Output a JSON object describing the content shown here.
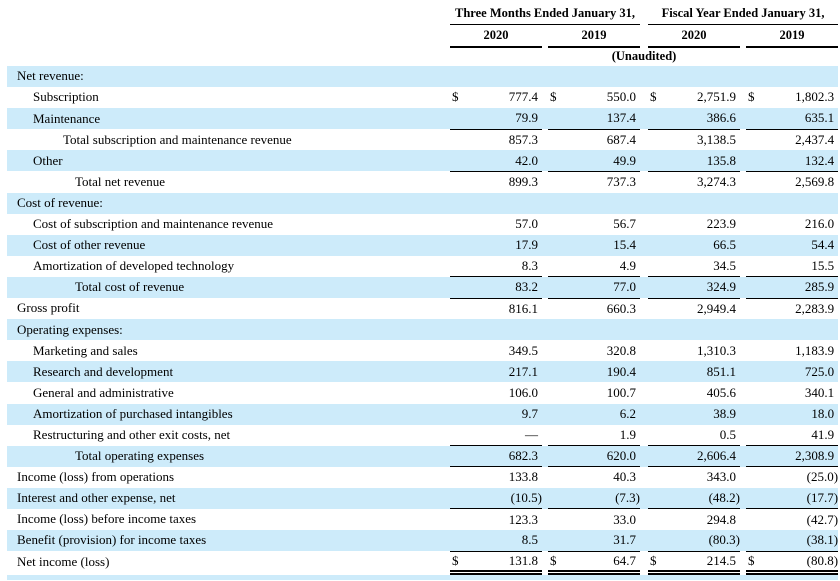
{
  "document": {
    "unaudited_note": "(Unaudited)",
    "column_groups": [
      {
        "label": "Three Months Ended January 31,",
        "years": [
          "2020",
          "2019"
        ]
      },
      {
        "label": "Fiscal Year Ended January 31,",
        "years": [
          "2020",
          "2019"
        ]
      }
    ]
  },
  "colors": {
    "row_highlight": "#cdebfa",
    "rule": "#000000",
    "text": "#000000"
  },
  "table": {
    "rows": [
      {
        "label": "Net revenue:",
        "indent": 0,
        "shaded": true,
        "dollar": false,
        "underline": "none",
        "values": [
          "",
          "",
          "",
          ""
        ]
      },
      {
        "label": "Subscription",
        "indent": 1,
        "shaded": false,
        "dollar": true,
        "underline": "none",
        "values": [
          "777.4",
          "550.0",
          "2,751.9",
          "1,802.3"
        ]
      },
      {
        "label": "Maintenance",
        "indent": 1,
        "shaded": true,
        "dollar": false,
        "underline": "single",
        "values": [
          "79.9",
          "137.4",
          "386.6",
          "635.1"
        ]
      },
      {
        "label": "Total subscription and maintenance revenue",
        "indent": 2,
        "shaded": false,
        "dollar": false,
        "underline": "none",
        "values": [
          "857.3",
          "687.4",
          "3,138.5",
          "2,437.4"
        ]
      },
      {
        "label": "Other",
        "indent": 1,
        "shaded": true,
        "dollar": false,
        "underline": "single",
        "values": [
          "42.0",
          "49.9",
          "135.8",
          "132.4"
        ]
      },
      {
        "label": "Total net revenue",
        "indent": 3,
        "shaded": false,
        "dollar": false,
        "underline": "none",
        "values": [
          "899.3",
          "737.3",
          "3,274.3",
          "2,569.8"
        ]
      },
      {
        "label": "Cost of revenue:",
        "indent": 0,
        "shaded": true,
        "dollar": false,
        "underline": "none",
        "values": [
          "",
          "",
          "",
          ""
        ]
      },
      {
        "label": "Cost of subscription and maintenance revenue",
        "indent": 1,
        "shaded": false,
        "dollar": false,
        "underline": "none",
        "values": [
          "57.0",
          "56.7",
          "223.9",
          "216.0"
        ]
      },
      {
        "label": "Cost of other revenue",
        "indent": 1,
        "shaded": true,
        "dollar": false,
        "underline": "none",
        "values": [
          "17.9",
          "15.4",
          "66.5",
          "54.4"
        ]
      },
      {
        "label": "Amortization of developed technology",
        "indent": 1,
        "shaded": false,
        "dollar": false,
        "underline": "single",
        "values": [
          "8.3",
          "4.9",
          "34.5",
          "15.5"
        ]
      },
      {
        "label": "Total cost of revenue",
        "indent": 3,
        "shaded": true,
        "dollar": false,
        "underline": "single",
        "values": [
          "83.2",
          "77.0",
          "324.9",
          "285.9"
        ]
      },
      {
        "label": "Gross profit",
        "indent": 0,
        "shaded": false,
        "dollar": false,
        "underline": "none",
        "values": [
          "816.1",
          "660.3",
          "2,949.4",
          "2,283.9"
        ]
      },
      {
        "label": "Operating expenses:",
        "indent": 0,
        "shaded": true,
        "dollar": false,
        "underline": "none",
        "values": [
          "",
          "",
          "",
          ""
        ]
      },
      {
        "label": "Marketing and sales",
        "indent": 1,
        "shaded": false,
        "dollar": false,
        "underline": "none",
        "values": [
          "349.5",
          "320.8",
          "1,310.3",
          "1,183.9"
        ]
      },
      {
        "label": "Research and development",
        "indent": 1,
        "shaded": true,
        "dollar": false,
        "underline": "none",
        "values": [
          "217.1",
          "190.4",
          "851.1",
          "725.0"
        ]
      },
      {
        "label": "General and administrative",
        "indent": 1,
        "shaded": false,
        "dollar": false,
        "underline": "none",
        "values": [
          "106.0",
          "100.7",
          "405.6",
          "340.1"
        ]
      },
      {
        "label": "Amortization of purchased intangibles",
        "indent": 1,
        "shaded": true,
        "dollar": false,
        "underline": "none",
        "values": [
          "9.7",
          "6.2",
          "38.9",
          "18.0"
        ]
      },
      {
        "label": "Restructuring and other exit costs, net",
        "indent": 1,
        "shaded": false,
        "dollar": false,
        "underline": "single",
        "values": [
          "—",
          "1.9",
          "0.5",
          "41.9"
        ]
      },
      {
        "label": "Total operating expenses",
        "indent": 3,
        "shaded": true,
        "dollar": false,
        "underline": "single",
        "values": [
          "682.3",
          "620.0",
          "2,606.4",
          "2,308.9"
        ]
      },
      {
        "label": "Income (loss) from operations",
        "indent": 0,
        "shaded": false,
        "dollar": false,
        "underline": "none",
        "values": [
          "133.8",
          "40.3",
          "343.0",
          "(25.0)"
        ]
      },
      {
        "label": "Interest and other expense, net",
        "indent": 0,
        "shaded": true,
        "dollar": false,
        "underline": "single",
        "values": [
          "(10.5)",
          "(7.3)",
          "(48.2)",
          "(17.7)"
        ]
      },
      {
        "label": "Income (loss) before income taxes",
        "indent": 0,
        "shaded": false,
        "dollar": false,
        "underline": "none",
        "values": [
          "123.3",
          "33.0",
          "294.8",
          "(42.7)"
        ]
      },
      {
        "label": "Benefit (provision) for income taxes",
        "indent": 0,
        "shaded": true,
        "dollar": false,
        "underline": "single",
        "values": [
          "8.5",
          "31.7",
          "(80.3)",
          "(38.1)"
        ]
      },
      {
        "label": "Net income (loss)",
        "indent": 0,
        "shaded": false,
        "dollar": true,
        "underline": "double",
        "values": [
          "131.8",
          "64.7",
          "214.5",
          "(80.8)"
        ]
      }
    ]
  }
}
